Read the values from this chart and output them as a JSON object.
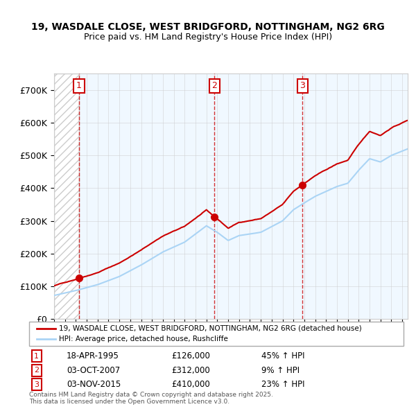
{
  "title_line1": "19, WASDALE CLOSE, WEST BRIDGFORD, NOTTINGHAM, NG2 6RG",
  "title_line2": "Price paid vs. HM Land Registry's House Price Index (HPI)",
  "ylabel": "",
  "xlabel": "",
  "ylim": [
    0,
    750000
  ],
  "yticks": [
    0,
    100000,
    200000,
    300000,
    400000,
    500000,
    600000,
    700000
  ],
  "ytick_labels": [
    "£0",
    "£100K",
    "£200K",
    "£300K",
    "£400K",
    "£500K",
    "£600K",
    "£700K"
  ],
  "sale_color": "#cc0000",
  "hpi_color": "#aad4f5",
  "legend_sale_label": "19, WASDALE CLOSE, WEST BRIDGFORD, NOTTINGHAM, NG2 6RG (detached house)",
  "legend_hpi_label": "HPI: Average price, detached house, Rushcliffe",
  "purchases": [
    {
      "num": 1,
      "date": "18-APR-1995",
      "price": 126000,
      "rel": "45% ↑ HPI",
      "year": 1995.29
    },
    {
      "num": 2,
      "date": "03-OCT-2007",
      "price": 312000,
      "rel": "9% ↑ HPI",
      "year": 2007.75
    },
    {
      "num": 3,
      "date": "03-NOV-2015",
      "price": 410000,
      "rel": "23% ↑ HPI",
      "year": 2015.84
    }
  ],
  "footnote": "Contains HM Land Registry data © Crown copyright and database right 2025.\nThis data is licensed under the Open Government Licence v3.0.",
  "background_hatch_color": "#e8e8e8",
  "plot_bg": "#f0f8ff"
}
